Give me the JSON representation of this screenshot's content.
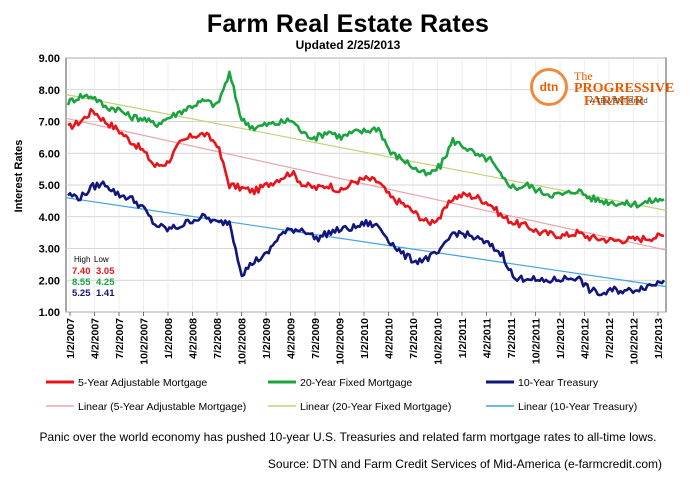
{
  "chart_data": {
    "type": "line",
    "title": "Farm Real Estate Rates",
    "subtitle": "Updated  2/25/2013",
    "ylabel": "Interest Rates",
    "xlabel": "",
    "ylim": [
      1.0,
      9.0
    ],
    "yticks": [
      "1.00",
      "2.00",
      "3.00",
      "4.00",
      "5.00",
      "6.00",
      "7.00",
      "8.00",
      "9.00"
    ],
    "x_tick_labels": [
      "1/2/2007",
      "4/2/2007",
      "7/2/2007",
      "10/2/2007",
      "1/2/2008",
      "4/2/2008",
      "7/2/2008",
      "10/2/2008",
      "1/2/2009",
      "4/2/2009",
      "7/2/2009",
      "10/2/2009",
      "1/2/2010",
      "4/2/2010",
      "7/2/2010",
      "10/2/2010",
      "1/2/2011",
      "4/2/2011",
      "7/2/2011",
      "10/2/2011",
      "1/2/2012",
      "4/2/2012",
      "7/2/2012",
      "10/2/2012",
      "1/2/2013"
    ],
    "grid": true,
    "legend_position": "bottom",
    "series": [
      {
        "name": "5-Year Adjustable Mortgage",
        "color": "#e8141b",
        "values": [
          6.8,
          7.0,
          7.35,
          7.0,
          6.75,
          6.4,
          6.1,
          5.6,
          5.7,
          6.3,
          6.55,
          6.6,
          6.3,
          5.0,
          4.9,
          4.8,
          5.0,
          5.2,
          5.4,
          5.0,
          4.9,
          5.0,
          4.8,
          5.1,
          5.2,
          5.1,
          4.6,
          4.4,
          4.1,
          3.8,
          4.0,
          4.6,
          4.7,
          4.6,
          4.4,
          4.0,
          3.8,
          3.7,
          3.5,
          3.45,
          3.4,
          3.5,
          3.35,
          3.3,
          3.25,
          3.28,
          3.3,
          3.35,
          3.4
        ]
      },
      {
        "name": "20-Year Fixed Mortgage",
        "color": "#1aa33f",
        "values": [
          7.6,
          7.8,
          7.8,
          7.45,
          7.4,
          7.15,
          7.1,
          6.9,
          7.1,
          7.3,
          7.5,
          7.65,
          7.5,
          8.5,
          7.05,
          6.8,
          6.9,
          6.95,
          7.05,
          6.6,
          6.5,
          6.7,
          6.5,
          6.65,
          6.7,
          6.8,
          6.0,
          5.8,
          5.5,
          5.3,
          5.6,
          6.4,
          6.2,
          5.9,
          5.8,
          5.2,
          4.9,
          5.0,
          4.8,
          4.7,
          4.7,
          4.85,
          4.6,
          4.5,
          4.45,
          4.4,
          4.4,
          4.5,
          4.55
        ]
      },
      {
        "name": "10-Year Treasury",
        "color": "#12157a",
        "values": [
          4.7,
          4.6,
          4.95,
          5.05,
          4.7,
          4.6,
          4.3,
          3.75,
          3.6,
          3.7,
          3.9,
          4.0,
          3.8,
          3.85,
          2.2,
          2.6,
          2.8,
          3.4,
          3.6,
          3.6,
          3.3,
          3.5,
          3.6,
          3.65,
          3.8,
          3.7,
          3.2,
          2.8,
          2.6,
          2.7,
          2.9,
          3.5,
          3.45,
          3.3,
          3.1,
          2.8,
          2.0,
          2.1,
          1.95,
          2.0,
          2.05,
          2.1,
          1.7,
          1.55,
          1.7,
          1.65,
          1.75,
          1.85,
          2.0
        ]
      }
    ],
    "trendlines": [
      {
        "name": "Linear (5-Year Adjustable Mortgage)",
        "color": "#e9a6a6",
        "start": 7.1,
        "end": 2.95
      },
      {
        "name": "Linear (20-Year Fixed Mortgage)",
        "color": "#c7cf7a",
        "start": 7.85,
        "end": 4.2
      },
      {
        "name": "Linear (10-Year Treasury)",
        "color": "#3fa4de",
        "start": 4.6,
        "end": 1.8
      }
    ],
    "highlow_table": {
      "headers": [
        "High",
        "Low"
      ],
      "rows": [
        {
          "high": "7.40",
          "low": "3.05",
          "color": "#e8141b"
        },
        {
          "high": "8.55",
          "low": "4.25",
          "color": "#1aa33f"
        },
        {
          "high": "5.25",
          "low": "1.41",
          "color": "#12157a"
        }
      ]
    }
  },
  "logo": {
    "badge": "dtn",
    "line1": "The",
    "line2": "PROGRESSIVE",
    "line3": "FARMER",
    "line4": "A TELVENT Brand"
  },
  "caption": "Panic over the world economy has pushed  10-year U.S. Treasuries and related farm mortgage rates to all-time  lows.",
  "source": "Source: DTN and Farm Credit Services of Mid-America  (e-farmcredit.com)"
}
